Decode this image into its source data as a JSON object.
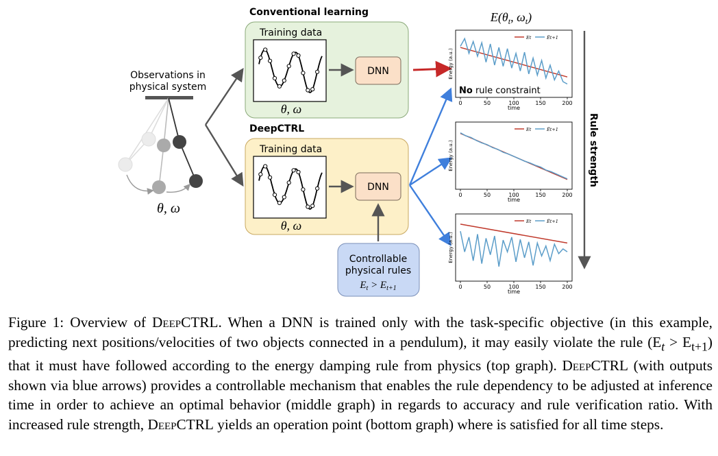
{
  "figure": {
    "observations_label_line1": "Observations in",
    "observations_label_line2": "physical system",
    "pendulum_state": "θ, ω",
    "conventional": {
      "title": "Conventional learning",
      "training_label": "Training data",
      "data_label": "θ, ω",
      "dnn_label": "DNN"
    },
    "deepctrl": {
      "title": "DeepCTRL",
      "training_label": "Training data",
      "data_label": "θ, ω",
      "dnn_label": "DNN"
    },
    "rules_box": {
      "line1": "Controllable",
      "line2": "physical rules",
      "rule": "E_t > E_t+1"
    },
    "plots_title": "E(θt, ωt)",
    "rule_strength_label": "Rule strength",
    "no_rule_label_bold": "No",
    "no_rule_label_rest": " rule constraint",
    "colors": {
      "green_panel": "#e6f2dd",
      "yellow_panel": "#fdf0c8",
      "dnn_box": "#fbe0c8",
      "rules_box": "#c9d9f5",
      "red_arrow": "#c62828",
      "blue_arrow": "#3f7fdc",
      "series_true": "#c0392b",
      "series_pred": "#5b9dc9"
    }
  },
  "chart_data": [
    {
      "type": "line",
      "name": "top",
      "ylabel": "Energy (a.u.)",
      "xlabel": "time",
      "xticks": [
        0,
        50,
        100,
        150,
        200
      ],
      "xlim": [
        0,
        200
      ],
      "legend": [
        "Et",
        "Êt+1"
      ],
      "legend_position": "top-right",
      "series": [
        {
          "legend_index": 0,
          "x": [
            0,
            200
          ],
          "y": [
            0.8,
            0.3
          ]
        },
        {
          "legend_index": 1,
          "x": [
            0,
            8,
            16,
            24,
            32,
            40,
            48,
            56,
            64,
            72,
            80,
            88,
            96,
            104,
            112,
            120,
            128,
            136,
            144,
            152,
            160,
            168,
            176,
            184,
            192,
            200
          ],
          "y": [
            0.82,
            0.95,
            0.7,
            0.9,
            0.65,
            0.88,
            0.55,
            0.86,
            0.5,
            0.8,
            0.48,
            0.78,
            0.45,
            0.7,
            0.4,
            0.72,
            0.35,
            0.62,
            0.33,
            0.58,
            0.28,
            0.5,
            0.25,
            0.4,
            0.22,
            0.18
          ]
        }
      ]
    },
    {
      "type": "line",
      "name": "middle",
      "ylabel": "Energy (a.u.)",
      "xlabel": "time",
      "xticks": [
        0,
        50,
        100,
        150,
        200
      ],
      "xlim": [
        0,
        200
      ],
      "legend": [
        "Et",
        "Êt+1"
      ],
      "legend_position": "top-right",
      "series": [
        {
          "legend_index": 0,
          "x": [
            0,
            200
          ],
          "y": [
            0.9,
            0.12
          ]
        },
        {
          "legend_index": 1,
          "x": [
            0,
            10,
            20,
            30,
            40,
            50,
            60,
            70,
            80,
            90,
            100,
            110,
            120,
            130,
            140,
            150,
            160,
            170,
            180,
            190,
            200
          ],
          "y": [
            0.91,
            0.86,
            0.83,
            0.78,
            0.74,
            0.71,
            0.66,
            0.63,
            0.58,
            0.55,
            0.51,
            0.47,
            0.43,
            0.4,
            0.36,
            0.33,
            0.28,
            0.25,
            0.21,
            0.17,
            0.13
          ]
        }
      ]
    },
    {
      "type": "line",
      "name": "bottom",
      "ylabel": "Energy (a.u.)",
      "xlabel": "time",
      "xticks": [
        0,
        50,
        100,
        150,
        200
      ],
      "xlim": [
        0,
        200
      ],
      "legend": [
        "Et",
        "Êt+1"
      ],
      "legend_position": "top-right",
      "series": [
        {
          "legend_index": 0,
          "x": [
            0,
            200
          ],
          "y": [
            0.92,
            0.6
          ]
        },
        {
          "legend_index": 1,
          "x": [
            0,
            8,
            16,
            24,
            32,
            40,
            48,
            56,
            64,
            72,
            80,
            88,
            96,
            104,
            112,
            120,
            128,
            136,
            144,
            152,
            160,
            168,
            176,
            184,
            192,
            200
          ],
          "y": [
            0.8,
            0.45,
            0.7,
            0.3,
            0.75,
            0.25,
            0.68,
            0.4,
            0.72,
            0.2,
            0.65,
            0.45,
            0.7,
            0.28,
            0.66,
            0.35,
            0.62,
            0.22,
            0.6,
            0.38,
            0.55,
            0.3,
            0.58,
            0.42,
            0.5,
            0.45
          ]
        }
      ]
    }
  ],
  "caption": {
    "lead": "Figure 1: Overview of ",
    "name1": "DeepCTRL",
    "text1": ". When a DNN is trained only with the task-specific objective (in this example, predicting next positions/velocities of two objects connected in a pendulum), it may easily violate the rule (E",
    "sub_t": "t",
    "gt": " > E",
    "sub_t1": "t+1",
    "text2": ") that it must have followed according to the energy damping rule from physics (top graph). ",
    "name2": "DeepCTRL",
    "text3": " (with outputs shown via blue arrows) provides a controllable mechanism that enables the rule dependency to be adjusted at inference time in order to achieve an optimal behavior (middle graph) in regards to accuracy and rule verification ratio. With increased rule strength, ",
    "name3": "DeepCTRL",
    "text4": " yields an operation point (bottom graph) where is satisfied for all time steps."
  }
}
